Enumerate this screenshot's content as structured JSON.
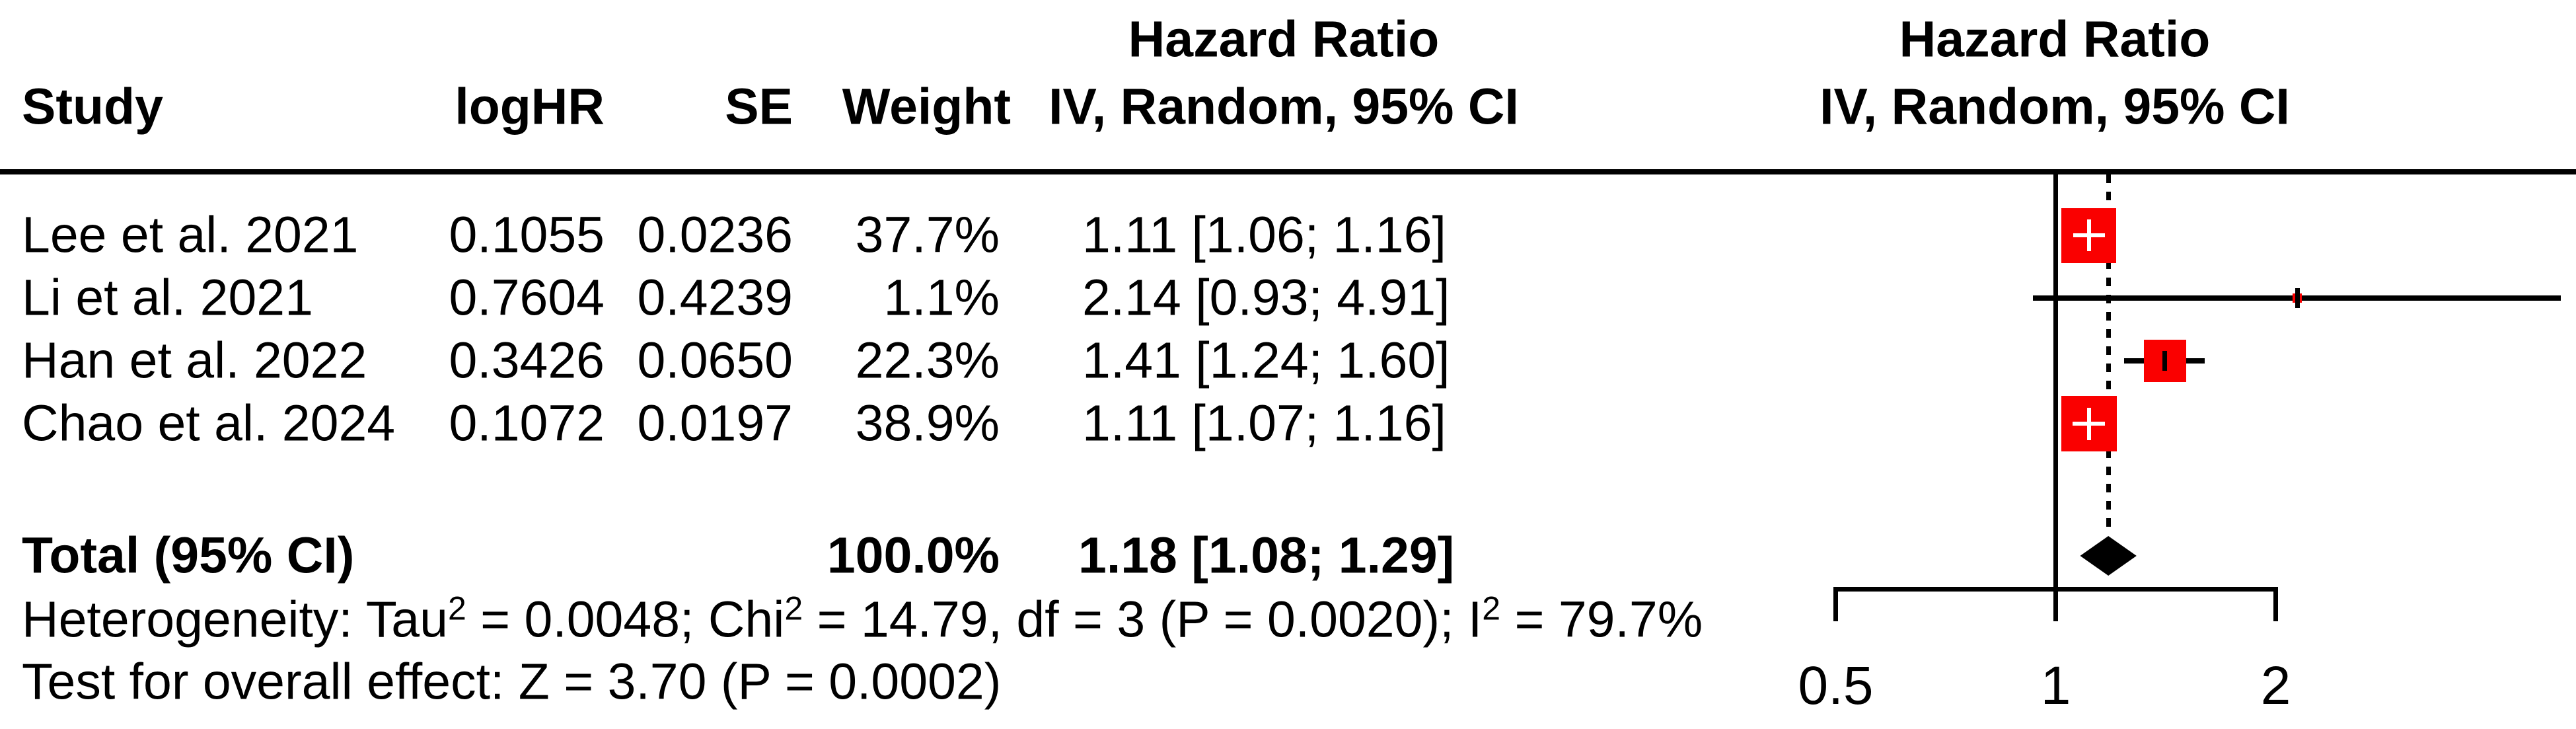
{
  "headers": {
    "hazard_ratio": "Hazard Ratio",
    "model": "IV, Random, 95% CI"
  },
  "columns": {
    "study": "Study",
    "loghr": "logHR",
    "se": "SE",
    "weight": "Weight",
    "ci": "IV, Random, 95% CI"
  },
  "rows": [
    {
      "study": "Lee et al. 2021",
      "loghr": "0.1055",
      "se": "0.0236",
      "weight": "37.7%",
      "ci": "1.11 [1.06; 1.16]",
      "hr": 1.11,
      "lo": 1.06,
      "hi": 1.16,
      "w": 37.7
    },
    {
      "study": "Li et al. 2021",
      "loghr": "0.7604",
      "se": "0.4239",
      "weight": "1.1%",
      "ci": "2.14 [0.93; 4.91]",
      "hr": 2.14,
      "lo": 0.93,
      "hi": 4.91,
      "w": 1.1
    },
    {
      "study": "Han et al. 2022",
      "loghr": "0.3426",
      "se": "0.0650",
      "weight": "22.3%",
      "ci": "1.41 [1.24; 1.60]",
      "hr": 1.41,
      "lo": 1.24,
      "hi": 1.6,
      "w": 22.3
    },
    {
      "study": "Chao et al. 2024",
      "loghr": "0.1072",
      "se": "0.0197",
      "weight": "38.9%",
      "ci": "1.11 [1.07; 1.16]",
      "hr": 1.11,
      "lo": 1.07,
      "hi": 1.16,
      "w": 38.9
    }
  ],
  "total": {
    "label": "Total (95% CI)",
    "weight": "100.0%",
    "ci": "1.18 [1.08; 1.29]",
    "hr": 1.18,
    "lo": 1.08,
    "hi": 1.29
  },
  "heterogeneity": {
    "p1": "Heterogeneity: Tau",
    "s1": "2",
    "p2": " = 0.0048; Chi",
    "s2": "2",
    "p3": " = 14.79, df = 3 (P = 0.0020); I",
    "s3": "2",
    "p4": " = 79.7%"
  },
  "overall_test": "Test for overall effect: Z = 3.70 (P = 0.0002)",
  "axis": {
    "ticks": [
      {
        "v": 0.5,
        "label": "0.5"
      },
      {
        "v": 1,
        "label": "1"
      },
      {
        "v": 2,
        "label": "2"
      }
    ]
  },
  "colors": {
    "marker_red": "#FA0000",
    "line_black": "#000000",
    "background": "#FFFFFF"
  },
  "chart_data": {
    "type": "forest",
    "scale": "log",
    "effect_measure": "Hazard Ratio",
    "model": "IV, Random, 95% CI",
    "x_ticks": [
      0.5,
      1,
      2
    ],
    "reference_line": 1,
    "pooled_line": 1.18,
    "studies": [
      {
        "name": "Lee et al. 2021",
        "logHR": 0.1055,
        "SE": 0.0236,
        "weight_pct": 37.7,
        "hr": 1.11,
        "ci_low": 1.06,
        "ci_high": 1.16
      },
      {
        "name": "Li et al. 2021",
        "logHR": 0.7604,
        "SE": 0.4239,
        "weight_pct": 1.1,
        "hr": 2.14,
        "ci_low": 0.93,
        "ci_high": 4.91
      },
      {
        "name": "Han et al. 2022",
        "logHR": 0.3426,
        "SE": 0.065,
        "weight_pct": 22.3,
        "hr": 1.41,
        "ci_low": 1.24,
        "ci_high": 1.6
      },
      {
        "name": "Chao et al. 2024",
        "logHR": 0.1072,
        "SE": 0.0197,
        "weight_pct": 38.9,
        "hr": 1.11,
        "ci_low": 1.07,
        "ci_high": 1.16
      }
    ],
    "total": {
      "label": "Total (95% CI)",
      "weight_pct": 100.0,
      "hr": 1.18,
      "ci_low": 1.08,
      "ci_high": 1.29
    },
    "heterogeneity": "Tau² = 0.0048; Chi² = 14.79, df = 3 (P = 0.0020); I² = 79.7%",
    "overall_effect": "Z = 3.70 (P = 0.0002)"
  }
}
